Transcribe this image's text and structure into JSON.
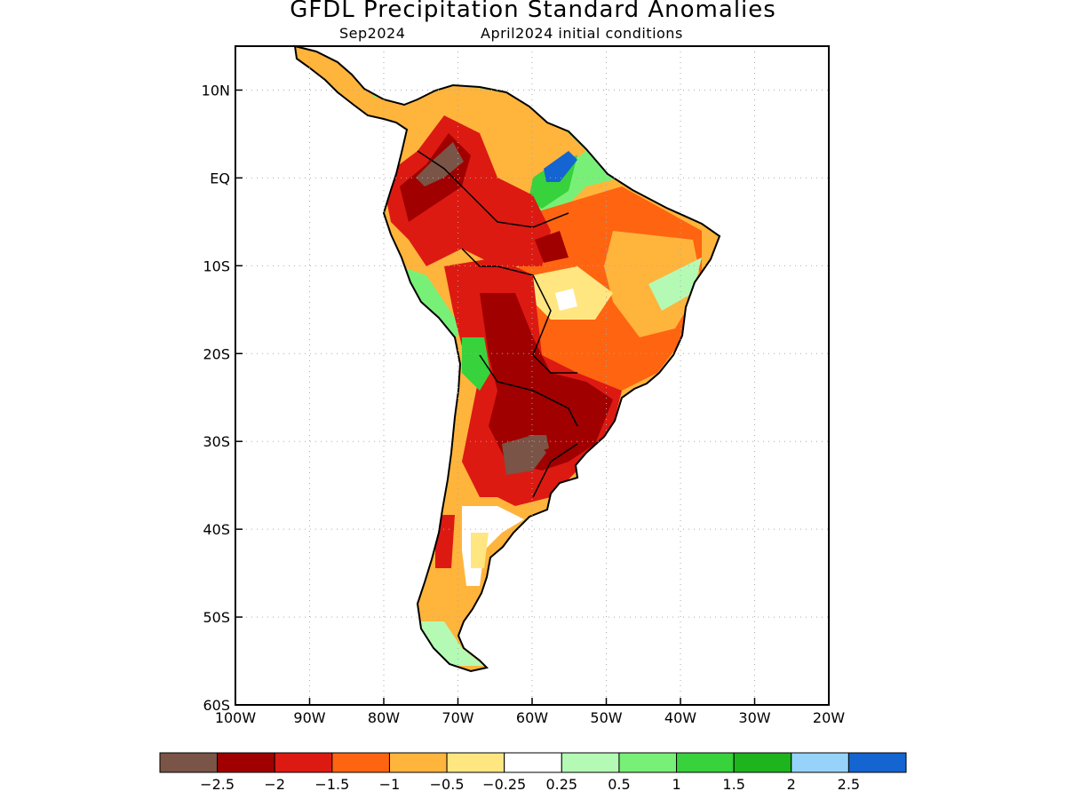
{
  "title": "GFDL Precipitation Standard Anomalies",
  "subtitle_left": "Sep2024",
  "subtitle_right": "April2024 initial conditions",
  "map": {
    "lon_range": [
      -100,
      -20
    ],
    "lat_range": [
      -60,
      15
    ],
    "x_ticks": [
      "100W",
      "90W",
      "80W",
      "70W",
      "60W",
      "50W",
      "40W",
      "30W",
      "20W"
    ],
    "y_ticks": [
      "10N",
      "EQ",
      "10S",
      "20S",
      "30S",
      "40S",
      "50S",
      "60S"
    ],
    "grid": true
  },
  "colorbar": {
    "colors": [
      "#7a5446",
      "#a00000",
      "#dc1a12",
      "#ff6410",
      "#ffb43c",
      "#ffe680",
      "#ffffff",
      "#b4fab4",
      "#78f078",
      "#37d23c",
      "#1eb41e",
      "#96d2fa",
      "#1464d2"
    ],
    "labels": [
      "−2.5",
      "−2",
      "−1.5",
      "−1",
      "−0.5",
      "−0.25",
      "0.25",
      "0.5",
      "1",
      "1.5",
      "2",
      "2.5"
    ]
  }
}
